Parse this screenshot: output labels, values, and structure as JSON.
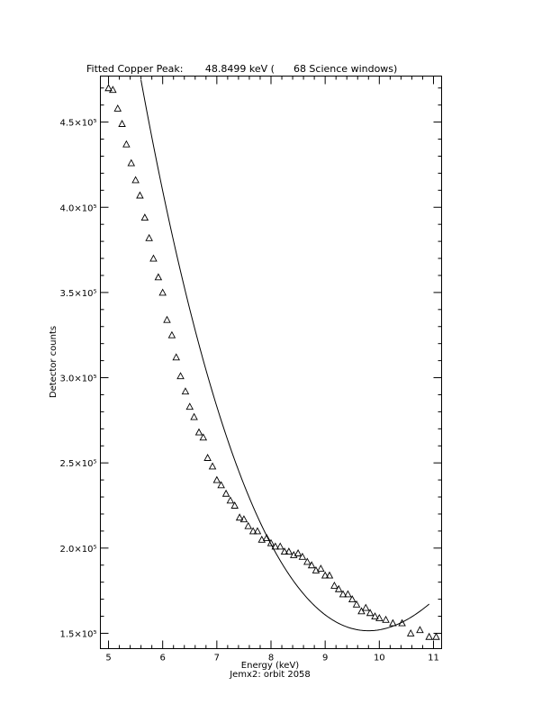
{
  "chart_data": {
    "type": "scatter",
    "title": "Fitted Copper Peak:       48.8499 keV (      68 Science windows)",
    "xlabel": "Energy (keV)",
    "ylabel": "Detector counts",
    "subtitle": "Jemx2: orbit 2058",
    "xlim": [
      4.85,
      11.15
    ],
    "ylim": [
      141000,
      477000
    ],
    "x_ticks": [
      5,
      6,
      7,
      8,
      9,
      10,
      11
    ],
    "x_tick_labels": [
      "5",
      "6",
      "7",
      "8",
      "9",
      "10",
      "11"
    ],
    "y_ticks": [
      150000,
      200000,
      250000,
      300000,
      350000,
      400000,
      450000
    ],
    "y_tick_labels": [
      "1.5×10⁵",
      "2.0×10⁵",
      "2.5×10⁵",
      "3.0×10⁵",
      "3.5×10⁵",
      "4.0×10⁵",
      "4.5×10⁵"
    ],
    "grid": false,
    "series": [
      {
        "marker": "triangle",
        "points": [
          [
            5.0,
            470000
          ],
          [
            5.08,
            469000
          ],
          [
            5.17,
            458000
          ],
          [
            5.25,
            449000
          ],
          [
            5.33,
            437000
          ],
          [
            5.42,
            426000
          ],
          [
            5.5,
            416000
          ],
          [
            5.58,
            407000
          ],
          [
            5.67,
            394000
          ],
          [
            5.75,
            382000
          ],
          [
            5.83,
            370000
          ],
          [
            5.92,
            359000
          ],
          [
            6.0,
            350000
          ],
          [
            6.08,
            334000
          ],
          [
            6.17,
            325000
          ],
          [
            6.25,
            312000
          ],
          [
            6.33,
            301000
          ],
          [
            6.42,
            292000
          ],
          [
            6.5,
            283000
          ],
          [
            6.58,
            277000
          ],
          [
            6.67,
            268000
          ],
          [
            6.75,
            265000
          ],
          [
            6.83,
            253000
          ],
          [
            6.92,
            248000
          ],
          [
            7.0,
            240000
          ],
          [
            7.08,
            237000
          ],
          [
            7.17,
            232000
          ],
          [
            7.25,
            228000
          ],
          [
            7.33,
            225000
          ],
          [
            7.42,
            218000
          ],
          [
            7.5,
            217000
          ],
          [
            7.58,
            213000
          ],
          [
            7.67,
            210000
          ],
          [
            7.75,
            210000
          ],
          [
            7.83,
            205000
          ],
          [
            7.92,
            206000
          ],
          [
            8.0,
            203000
          ],
          [
            8.08,
            201000
          ],
          [
            8.17,
            201000
          ],
          [
            8.25,
            198000
          ],
          [
            8.33,
            198000
          ],
          [
            8.42,
            196000
          ],
          [
            8.5,
            197000
          ],
          [
            8.58,
            195000
          ],
          [
            8.67,
            192000
          ],
          [
            8.75,
            190000
          ],
          [
            8.83,
            187000
          ],
          [
            8.92,
            188000
          ],
          [
            9.0,
            184000
          ],
          [
            9.08,
            184000
          ],
          [
            9.17,
            178000
          ],
          [
            9.25,
            176000
          ],
          [
            9.33,
            173000
          ],
          [
            9.42,
            173000
          ],
          [
            9.5,
            170000
          ],
          [
            9.58,
            167000
          ],
          [
            9.67,
            163000
          ],
          [
            9.75,
            165000
          ],
          [
            9.83,
            162000
          ],
          [
            9.92,
            160000
          ],
          [
            10.0,
            159000
          ],
          [
            10.12,
            158000
          ],
          [
            10.25,
            156000
          ],
          [
            10.42,
            156000
          ],
          [
            10.58,
            150000
          ],
          [
            10.75,
            152000
          ],
          [
            10.92,
            148000
          ],
          [
            11.05,
            148000
          ]
        ]
      },
      {
        "marker": "line",
        "fit": {
          "x0": 9.8,
          "y0": 151500,
          "a": 13700,
          "b": -1100
        },
        "x_range": [
          5.6,
          10.92
        ]
      }
    ]
  }
}
